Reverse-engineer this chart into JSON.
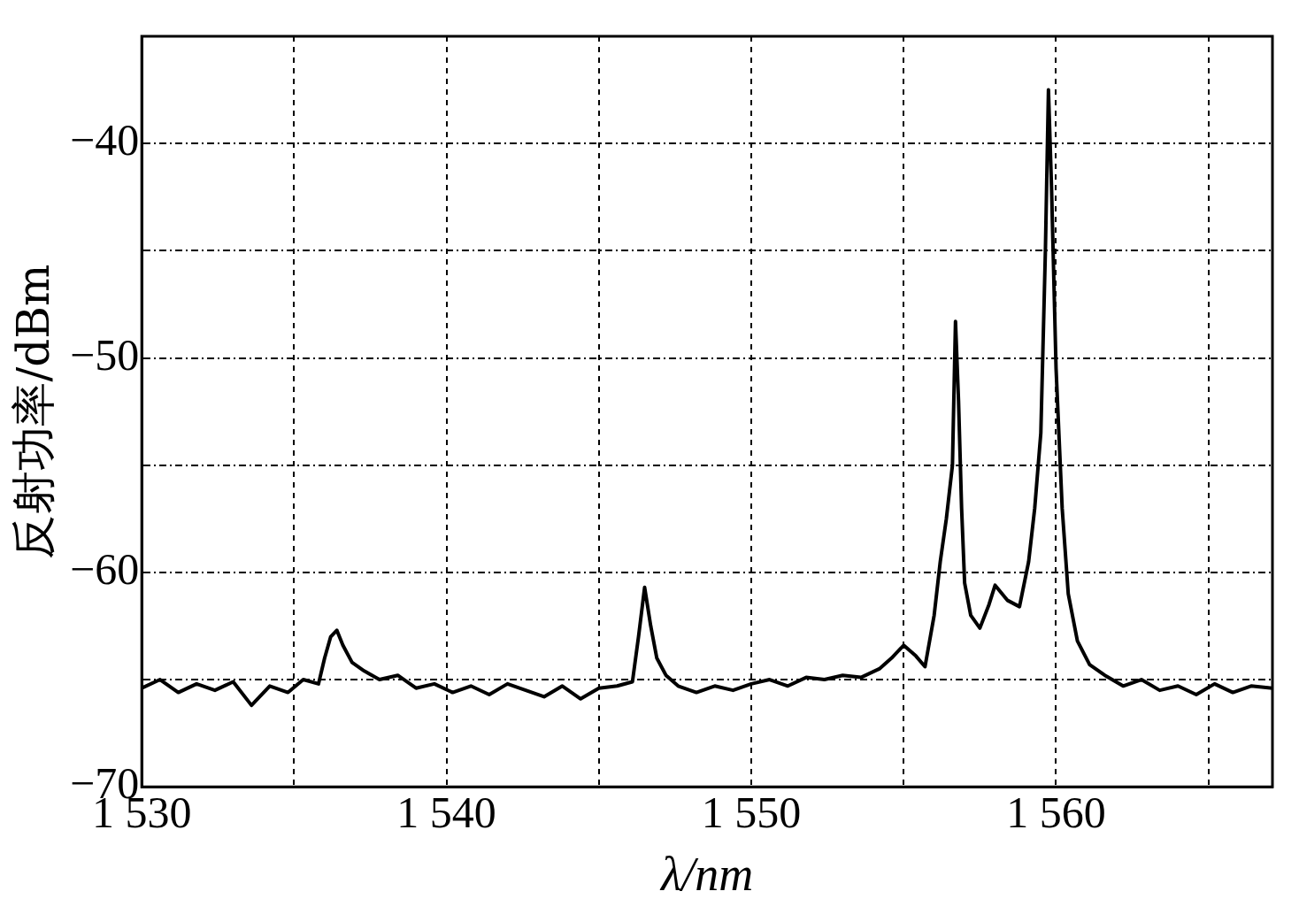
{
  "chart_data": {
    "type": "line",
    "xlabel": "λ/nm",
    "ylabel": "反射功率/dBm",
    "xlim": [
      1530,
      1567.1
    ],
    "ylim": [
      -70,
      -35
    ],
    "xticks": [
      {
        "value": 1530,
        "label": "1 530"
      },
      {
        "value": 1535,
        "label": null
      },
      {
        "value": 1540,
        "label": "1 540"
      },
      {
        "value": 1545,
        "label": null
      },
      {
        "value": 1550,
        "label": "1 550"
      },
      {
        "value": 1555,
        "label": null
      },
      {
        "value": 1560,
        "label": "1 560"
      },
      {
        "value": 1565,
        "label": null
      }
    ],
    "yticks": [
      {
        "value": -70,
        "label": "−70"
      },
      {
        "value": -65,
        "label": null
      },
      {
        "value": -60,
        "label": "−60"
      },
      {
        "value": -55,
        "label": null
      },
      {
        "value": -50,
        "label": "−50"
      },
      {
        "value": -45,
        "label": null
      },
      {
        "value": -40,
        "label": "−40"
      }
    ],
    "grid": true,
    "legend": false,
    "marker": "none",
    "line_style": "solid",
    "series": [
      {
        "color": "#000000",
        "x": [
          1530.0,
          1530.6,
          1531.2,
          1531.8,
          1532.4,
          1533.0,
          1533.6,
          1534.2,
          1534.8,
          1535.3,
          1535.8,
          1536.0,
          1536.2,
          1536.4,
          1536.6,
          1536.9,
          1537.3,
          1537.8,
          1538.4,
          1539.0,
          1539.6,
          1540.2,
          1540.8,
          1541.4,
          1542.0,
          1542.6,
          1543.2,
          1543.8,
          1544.4,
          1545.0,
          1545.6,
          1546.1,
          1546.3,
          1546.5,
          1546.7,
          1546.9,
          1547.2,
          1547.6,
          1548.2,
          1548.8,
          1549.4,
          1550.0,
          1550.6,
          1551.2,
          1551.8,
          1552.4,
          1553.0,
          1553.6,
          1554.2,
          1554.6,
          1555.0,
          1555.4,
          1555.7,
          1556.0,
          1556.2,
          1556.4,
          1556.6,
          1556.7,
          1556.8,
          1556.9,
          1557.0,
          1557.2,
          1557.5,
          1557.8,
          1558.0,
          1558.4,
          1558.8,
          1559.1,
          1559.3,
          1559.5,
          1559.65,
          1559.75,
          1559.85,
          1560.0,
          1560.2,
          1560.4,
          1560.7,
          1561.1,
          1561.6,
          1562.2,
          1562.8,
          1563.4,
          1564.0,
          1564.6,
          1565.2,
          1565.8,
          1566.4,
          1567.1
        ],
        "values": [
          -65.4,
          -65.0,
          -65.6,
          -65.2,
          -65.5,
          -65.1,
          -66.2,
          -65.3,
          -65.6,
          -65.0,
          -65.2,
          -64.0,
          -63.0,
          -62.7,
          -63.4,
          -64.2,
          -64.6,
          -65.0,
          -64.8,
          -65.4,
          -65.2,
          -65.6,
          -65.3,
          -65.7,
          -65.2,
          -65.5,
          -65.8,
          -65.3,
          -65.9,
          -65.4,
          -65.3,
          -65.1,
          -63.0,
          -60.7,
          -62.5,
          -64.0,
          -64.8,
          -65.3,
          -65.6,
          -65.3,
          -65.5,
          -65.2,
          -65.0,
          -65.3,
          -64.9,
          -65.0,
          -64.8,
          -64.9,
          -64.5,
          -64.0,
          -63.4,
          -63.9,
          -64.4,
          -62.0,
          -59.5,
          -57.5,
          -55.0,
          -48.3,
          -52.0,
          -57.0,
          -60.5,
          -62.0,
          -62.6,
          -61.5,
          -60.6,
          -61.3,
          -61.6,
          -59.5,
          -57.0,
          -53.5,
          -45.0,
          -37.5,
          -42.0,
          -50.5,
          -57.0,
          -61.0,
          -63.2,
          -64.3,
          -64.8,
          -65.3,
          -65.0,
          -65.5,
          -65.3,
          -65.7,
          -65.2,
          -65.6,
          -65.3,
          -65.4
        ]
      }
    ]
  }
}
